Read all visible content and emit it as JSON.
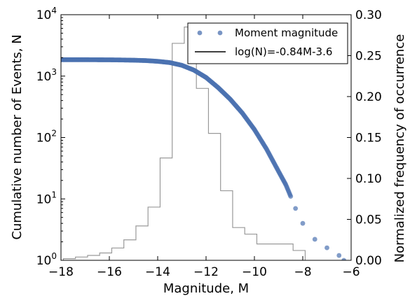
{
  "chart_data": {
    "type": "scatter",
    "xlabel": "Magnitude, M",
    "ylabel_left": "Cumulative number of Events, N",
    "ylabel_right": "Normalized frequency of occurrence",
    "xlim": [
      -18,
      -6
    ],
    "ylim_left": [
      1,
      10000
    ],
    "yscale_left": "log",
    "ylim_right": [
      0.0,
      0.3
    ],
    "x_ticks": [
      -18,
      -16,
      -14,
      -12,
      -10,
      -8,
      -6
    ],
    "x_tick_labels": [
      "−18",
      "−16",
      "−14",
      "−12",
      "−10",
      "−8",
      "−6"
    ],
    "y_left_ticks": [
      {
        "base": "10",
        "exp": "0",
        "value": 1
      },
      {
        "base": "10",
        "exp": "1",
        "value": 10
      },
      {
        "base": "10",
        "exp": "2",
        "value": 100
      },
      {
        "base": "10",
        "exp": "3",
        "value": 1000
      },
      {
        "base": "10",
        "exp": "4",
        "value": 10000
      }
    ],
    "y_right_ticks": [
      "0.00",
      "0.05",
      "0.10",
      "0.15",
      "0.20",
      "0.25",
      "0.30"
    ],
    "legend_position": "top-right",
    "colors": {
      "scatter": "#4c72b0",
      "fit_line": "#000000",
      "histogram": "#999999"
    },
    "series": [
      {
        "name": "Moment magnitude",
        "kind": "scatter",
        "axis": "left",
        "points": [
          [
            -18.0,
            1850
          ],
          [
            -17.5,
            1850
          ],
          [
            -17.0,
            1850
          ],
          [
            -16.5,
            1845
          ],
          [
            -16.0,
            1840
          ],
          [
            -15.5,
            1830
          ],
          [
            -15.0,
            1815
          ],
          [
            -14.5,
            1790
          ],
          [
            -14.0,
            1740
          ],
          [
            -13.5,
            1660
          ],
          [
            -13.0,
            1500
          ],
          [
            -12.5,
            1250
          ],
          [
            -12.0,
            950
          ],
          [
            -11.5,
            650
          ],
          [
            -11.0,
            420
          ],
          [
            -10.5,
            250
          ],
          [
            -10.0,
            135
          ],
          [
            -9.5,
            65
          ],
          [
            -9.0,
            28
          ],
          [
            -8.7,
            17
          ],
          [
            -8.5,
            11
          ],
          [
            -8.3,
            7
          ],
          [
            -8.0,
            4
          ],
          [
            -7.5,
            2.2
          ],
          [
            -7.0,
            1.6
          ],
          [
            -6.5,
            1.2
          ],
          [
            -6.3,
            1.0
          ]
        ]
      },
      {
        "name": "log(N)=-0.84M-3.6",
        "kind": "line",
        "axis": "left",
        "slope": -0.84,
        "intercept": -3.6,
        "x_range": [
          -14.2,
          -9.1
        ]
      },
      {
        "name": "",
        "kind": "histogram",
        "axis": "right",
        "bin_edges": [
          -17.9,
          -17.4,
          -16.9,
          -16.4,
          -15.9,
          -15.4,
          -14.9,
          -14.4,
          -13.9,
          -13.4,
          -12.9,
          -12.4,
          -11.9,
          -11.4,
          -10.9,
          -10.4,
          -9.9,
          -9.4,
          -8.9,
          -8.4,
          -7.9
        ],
        "values": [
          0.002,
          0.004,
          0.006,
          0.009,
          0.015,
          0.025,
          0.042,
          0.065,
          0.125,
          0.265,
          0.285,
          0.21,
          0.155,
          0.085,
          0.04,
          0.032,
          0.02,
          0.02,
          0.02,
          0.012
        ]
      }
    ]
  }
}
